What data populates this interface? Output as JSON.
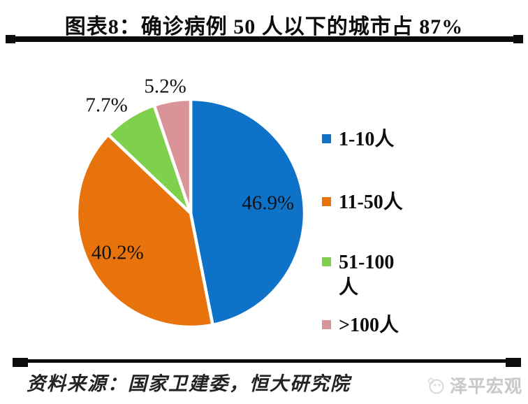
{
  "header": {
    "title": "图表8：确诊病例 50 人以下的城市占 87%"
  },
  "chart_data": {
    "type": "pie",
    "title": "图表8：确诊病例 50 人以下的城市占 87%",
    "unit": "%",
    "total": 100,
    "direction": "clockwise",
    "start_angle_deg": 0,
    "legend_position": "right",
    "gap_color": "#ffffff",
    "slices": [
      {
        "label": "1-10人",
        "legend_lines": [
          "1-10人"
        ],
        "value": 46.9,
        "display": "46.9%",
        "color": "#0E72C8",
        "label_inside": true,
        "label_angle_deg": 82.7,
        "label_r": 0.685
      },
      {
        "label": "11-50人",
        "legend_lines": [
          "11-50人"
        ],
        "value": 40.2,
        "display": "40.2%",
        "color": "#E8730C",
        "label_inside": true,
        "label_angle_deg": 241.3,
        "label_r": 0.732
      },
      {
        "label": "51-100人",
        "legend_lines": [
          "51-100",
          "人"
        ],
        "value": 7.7,
        "display": "7.7%",
        "color": "#7FD04C",
        "label_inside": false,
        "label_angle_deg": 322,
        "label_r": 1.2
      },
      {
        "label": ">100人",
        "legend_lines": [
          ">100人"
        ],
        "value": 5.2,
        "display": "5.2%",
        "color": "#DA9498",
        "label_inside": false,
        "label_angle_deg": 348.6,
        "label_r": 1.13
      }
    ]
  },
  "footer": {
    "source": "资料来源：国家卫建委，恒大研究院",
    "brand": "泽平宏观"
  }
}
